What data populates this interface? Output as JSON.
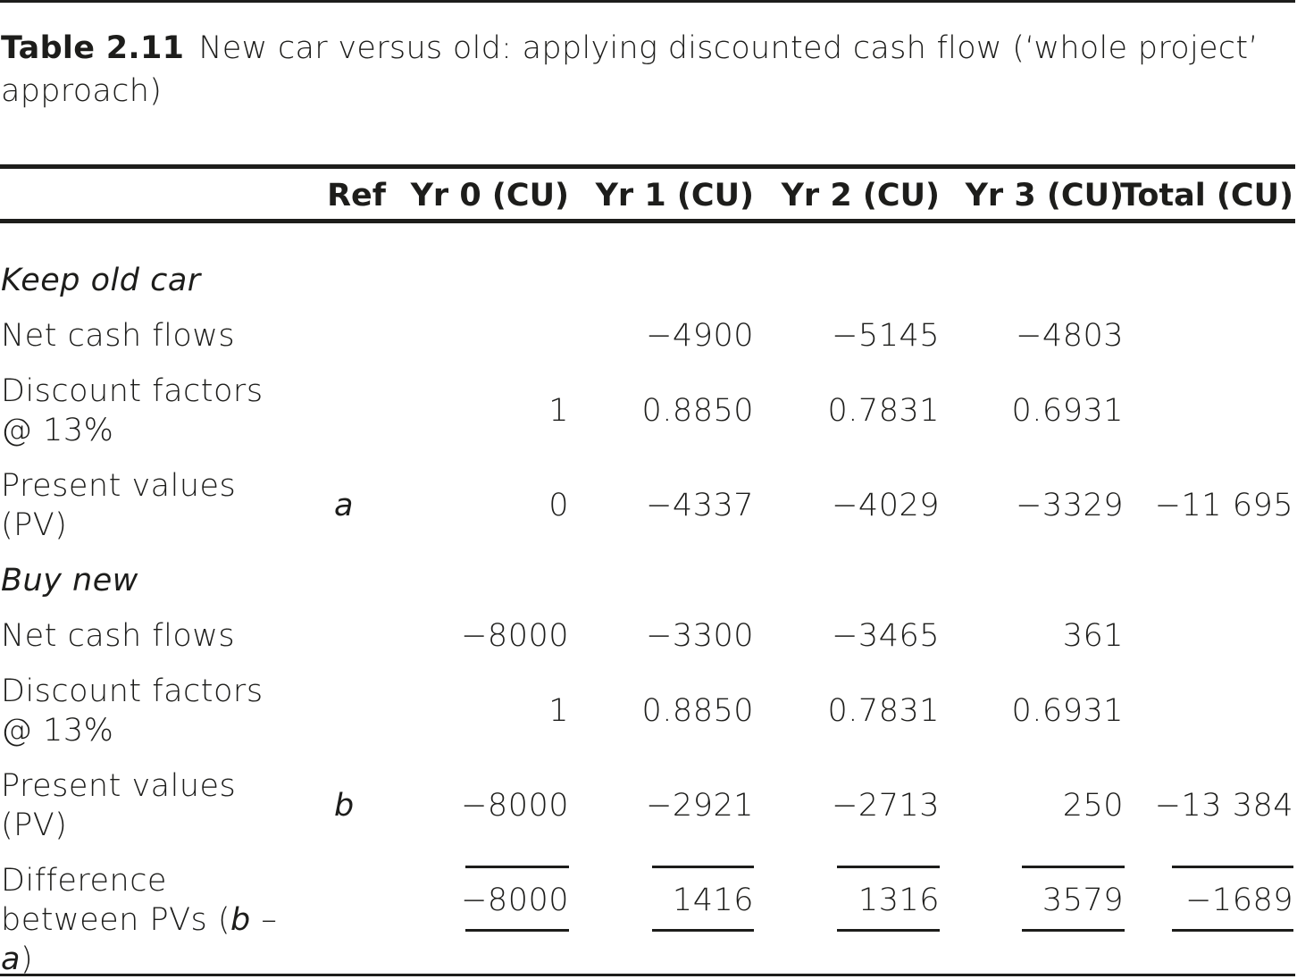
{
  "caption": {
    "number": "Table 2.11",
    "text": "New car versus old: applying discounted cash flow (‘whole project’ approach)"
  },
  "header": [
    "",
    "Ref",
    "Yr 0 (CU)",
    "Yr 1 (CU)",
    "Yr 2 (CU)",
    "Yr 3 (CU)",
    "Total (CU)"
  ],
  "sections": [
    {
      "title": "Keep old car",
      "rows": [
        {
          "label": "Net cash flows",
          "ref": "",
          "yr0": "",
          "yr1": "−4900",
          "yr2": "−5145",
          "yr3": "−4803",
          "total": ""
        },
        {
          "label": "Discount factors @ 13%",
          "ref": "",
          "yr0": "1",
          "yr1": "0.8850",
          "yr2": "0.7831",
          "yr3": "0.6931",
          "total": ""
        },
        {
          "label": "Present values (PV)",
          "ref": "a",
          "yr0": "0",
          "yr1": "−4337",
          "yr2": "−4029",
          "yr3": "−3329",
          "total": "−11 695"
        }
      ]
    },
    {
      "title": "Buy new",
      "rows": [
        {
          "label": "Net cash flows",
          "ref": "",
          "yr0": "−8000",
          "yr1": "−3300",
          "yr2": "−3465",
          "yr3": "361",
          "total": ""
        },
        {
          "label": "Discount factors @ 13%",
          "ref": "",
          "yr0": "1",
          "yr1": "0.8850",
          "yr2": "0.7831",
          "yr3": "0.6931",
          "total": ""
        },
        {
          "label": "Present values (PV)",
          "ref": "b",
          "yr0": "−8000",
          "yr1": "−2921",
          "yr2": "−2713",
          "yr3": "250",
          "total": "−13 384"
        }
      ]
    }
  ],
  "difference": {
    "label_main": "Difference",
    "label_line2_prefix": "between PVs (",
    "label_b": "b",
    "label_dash": " – ",
    "label_a": "a",
    "label_close": ")",
    "yr0": "−8000",
    "yr1": "1416",
    "yr2": "1316",
    "yr3": "3579",
    "total": "−1689"
  }
}
